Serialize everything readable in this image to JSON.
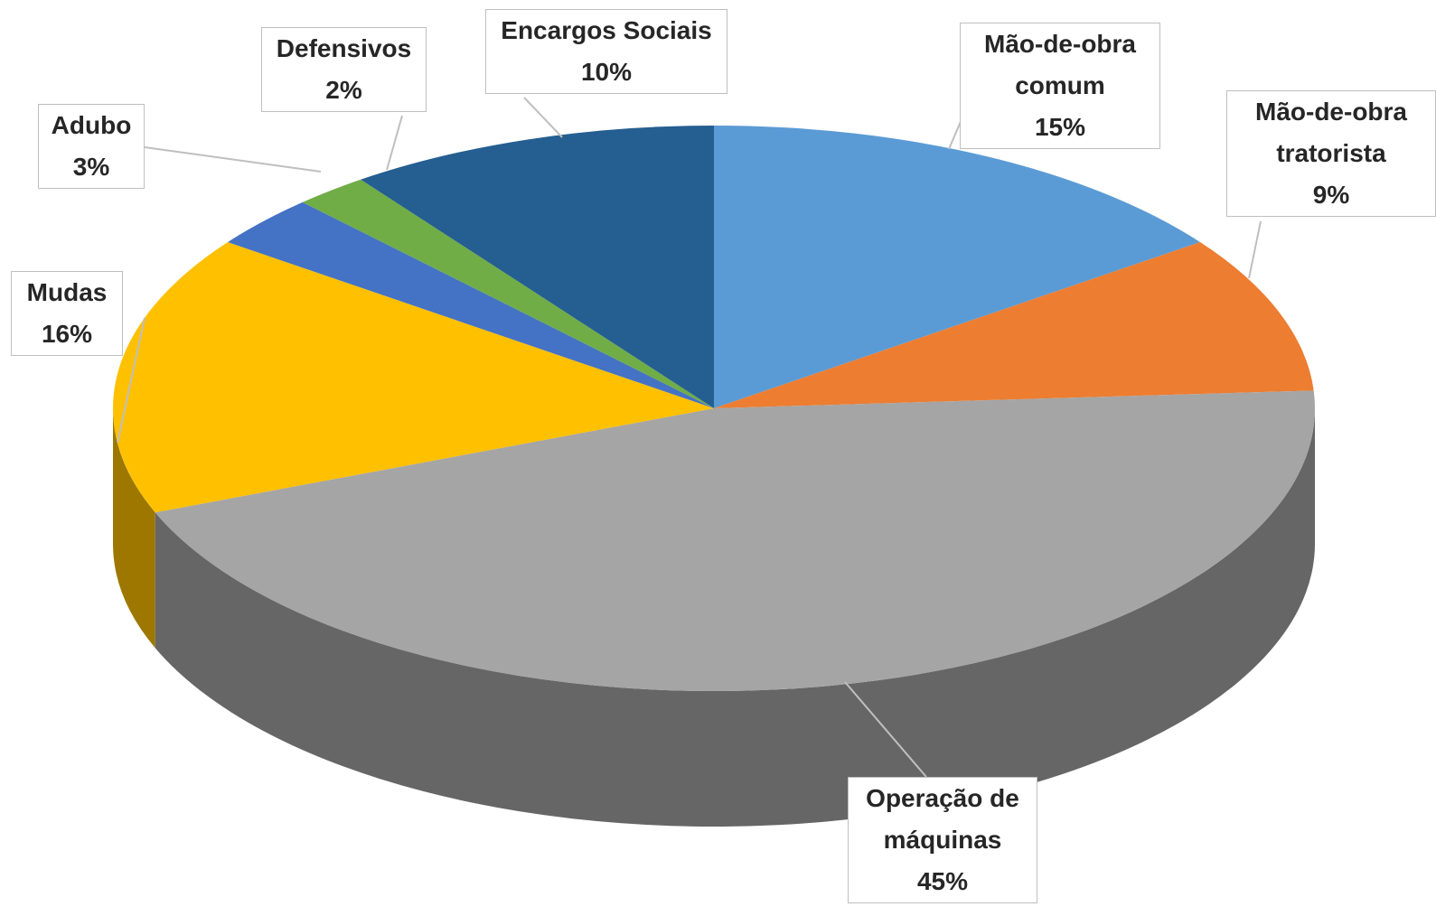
{
  "chart_data": {
    "type": "pie",
    "categories": [
      "Mão-de-obra comum",
      "Mão-de-obra tratorista",
      "Operação de máquinas",
      "Mudas",
      "Adubo",
      "Defensivos",
      "Encargos Sociais"
    ],
    "values": [
      15,
      9,
      45,
      16,
      3,
      2,
      10
    ],
    "value_labels": [
      "15%",
      "9%",
      "45%",
      "16%",
      "3%",
      "2%",
      "10%"
    ],
    "colors": [
      "#5b9bd5",
      "#ed7d31",
      "#a5a5a5",
      "#ffc000",
      "#4472c4",
      "#70ad47",
      "#255e91"
    ]
  }
}
